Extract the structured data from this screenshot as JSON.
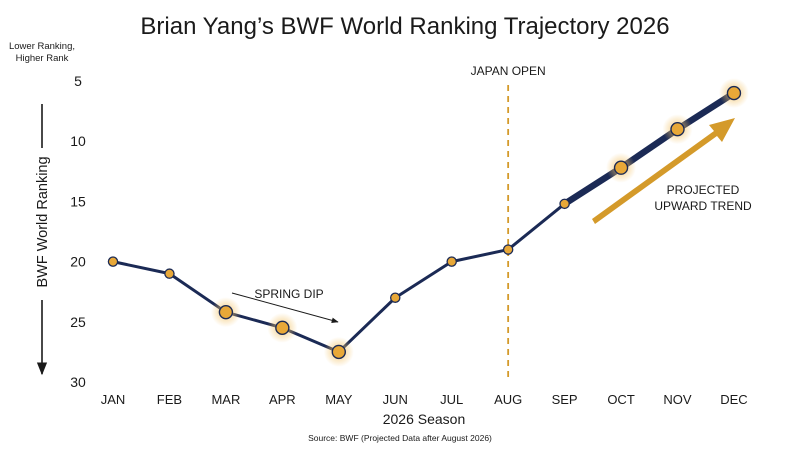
{
  "chart_data": {
    "type": "line",
    "title": "Brian Yang’s BWF World Ranking Trajectory 2026",
    "xlabel": "2026 Season",
    "ylabel": "BWF World Ranking",
    "y_axis_note": [
      "Lower Ranking,",
      "Higher Rank"
    ],
    "source": "Source: BWF (Projected Data after August 2026)",
    "categories": [
      "JAN",
      "FEB",
      "MAR",
      "APR",
      "MAY",
      "JUN",
      "JUL",
      "AUG",
      "SEP",
      "OCT",
      "NOV",
      "DEC"
    ],
    "series": [
      {
        "values": [
          20,
          21,
          24.2,
          25.5,
          27.5,
          23,
          20,
          19,
          15.2,
          12.2,
          9,
          6
        ],
        "highlighted_points": [
          "MAR",
          "APR",
          "MAY",
          "OCT",
          "NOV",
          "DEC"
        ],
        "projected_from": "AUG"
      }
    ],
    "ylim": [
      30,
      4
    ],
    "y_inverted": true,
    "yticks": [
      5,
      10,
      15,
      20,
      25,
      30
    ],
    "grid": false,
    "annotations": [
      {
        "text": "JAPAN OPEN",
        "x": "AUG"
      },
      {
        "text": "SPRING DIP"
      },
      {
        "text": "PROJECTED\nUPWARD TREND"
      }
    ],
    "colors": {
      "line": "#1b2a55",
      "marker_fill": "#e8a838",
      "highlight_glow": "#f3c46a",
      "accent": "#d49a2a",
      "text": "#1a1a1a"
    }
  }
}
